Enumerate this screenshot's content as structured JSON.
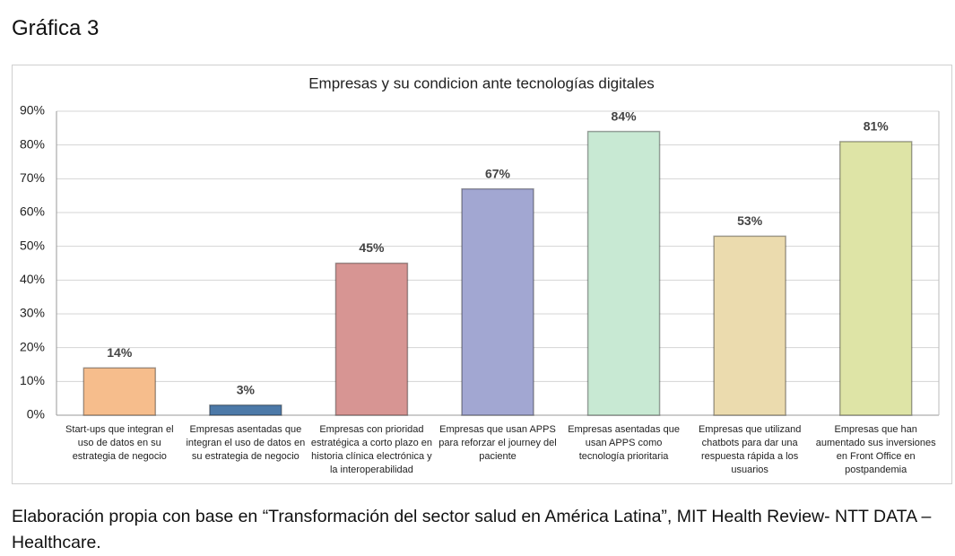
{
  "heading": "Gráfica 3",
  "chart_data": {
    "type": "bar",
    "title": "Empresas  y su condicion ante tecnologías digitales",
    "categories": [
      "Start-ups que integran el uso de datos en su estrategia de negocio",
      "Empresas asentadas que integran el uso de datos en su estrategia de negocio",
      "Empresas con prioridad estratégica a corto plazo en historia clínica electrónica y la interoperabilidad",
      "Empresas que usan APPS para reforzar el journey del paciente",
      "Empresas asentadas que usan APPS como tecnología prioritaria",
      "Empresas que utilizand chatbots para dar una respuesta rápida a los usuarios",
      "Empresas que han aumentado sus inversiones en Front Office en postpandemia"
    ],
    "values": [
      14,
      3,
      45,
      67,
      84,
      53,
      81
    ],
    "value_labels": [
      "14%",
      "3%",
      "45%",
      "67%",
      "84%",
      "53%",
      "81%"
    ],
    "colors": [
      "#f6bd8c",
      "#4c79a8",
      "#d79593",
      "#a2a7d2",
      "#c8e9d3",
      "#ebdbae",
      "#dee4a6"
    ],
    "ylim": [
      0,
      90
    ],
    "yticks": [
      {
        "value": 0,
        "label": "0%"
      },
      {
        "value": 10,
        "label": "10%"
      },
      {
        "value": 20,
        "label": "20%"
      },
      {
        "value": 30,
        "label": "30%"
      },
      {
        "value": 40,
        "label": "40%"
      },
      {
        "value": 50,
        "label": "50%"
      },
      {
        "value": 60,
        "label": "60%"
      },
      {
        "value": 70,
        "label": "70%"
      },
      {
        "value": 80,
        "label": "80%"
      },
      {
        "value": 90,
        "label": "90%"
      }
    ],
    "grid": true
  },
  "footnote": "Elaboración propia con base en “Transformación del sector salud en América Latina”, MIT Health Review- NTT DATA – Healthcare."
}
